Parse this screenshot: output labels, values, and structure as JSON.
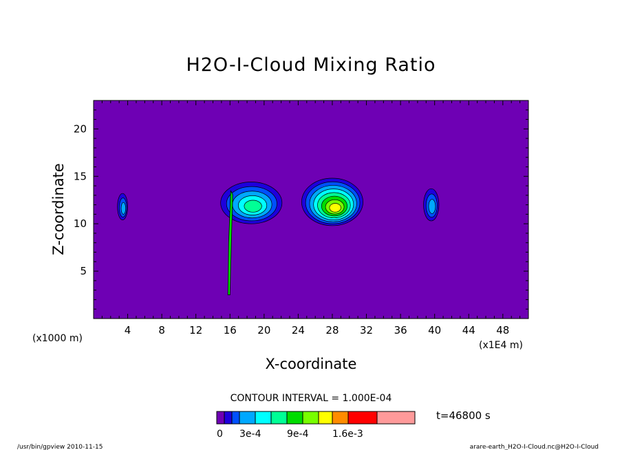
{
  "chart_data": {
    "type": "contour",
    "title": "H2O-I-Cloud Mixing Ratio",
    "xlabel": "X-coordinate",
    "ylabel": "Z-coordinate",
    "x_unit_label": "(x1E4 m)",
    "y_unit_label": "(x1000 m)",
    "xlim": [
      0,
      51
    ],
    "ylim": [
      0,
      23
    ],
    "x_ticks": [
      4,
      8,
      12,
      16,
      20,
      24,
      28,
      32,
      36,
      40,
      44,
      48
    ],
    "y_ticks": [
      5,
      10,
      15,
      20
    ],
    "contour_interval_text": "CONTOUR INTERVAL = 1.000E-04",
    "time_text": "t=46800 s",
    "colorbar": {
      "colors": [
        "#6e00b4",
        "#1e00dc",
        "#0050ff",
        "#00a8ff",
        "#00ffff",
        "#00ff96",
        "#00dc00",
        "#78ff00",
        "#ffff00",
        "#ff8c00",
        "#ff0000",
        "#ff9a9a"
      ],
      "labels": [
        "0",
        "3e-4",
        "9e-4",
        "1.6e-3"
      ],
      "label_positions": [
        0,
        3,
        6,
        9
      ]
    },
    "background_color": "#6e00b4",
    "features": [
      {
        "name": "cloud-x3",
        "x": 3.4,
        "z": 11.8,
        "rx": 0.6,
        "rz": 1.4,
        "max_level": 3
      },
      {
        "name": "cloud-x18",
        "x": 18.5,
        "z": 12.2,
        "rx": 3.6,
        "rz": 2.2,
        "max_level": 5
      },
      {
        "name": "cloud-x28",
        "x": 28.0,
        "z": 12.3,
        "rx": 3.6,
        "rz": 2.5,
        "max_level": 8
      },
      {
        "name": "cloud-x39",
        "x": 39.6,
        "z": 12.0,
        "rx": 0.9,
        "rz": 1.7,
        "max_level": 3
      }
    ],
    "column": {
      "name": "updraft-column-x16",
      "x": 16.0,
      "z_bottom": 2.5,
      "z_top": 13.5
    }
  },
  "footer": {
    "left": "/usr/bin/gpview   2010-11-15",
    "right": "arare-earth_H2O-I-Cloud.nc@H2O-I-Cloud"
  }
}
